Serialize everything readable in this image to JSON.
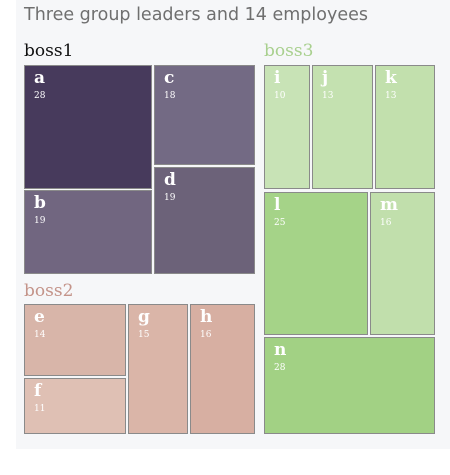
{
  "chart_data": {
    "type": "treemap",
    "title": "Three group leaders and 14 employees",
    "groups": [
      {
        "name": "boss1",
        "label_color": "#111111",
        "color": "#6e6480",
        "children": [
          {
            "name": "a",
            "value": 28,
            "color": "#473a5c"
          },
          {
            "name": "b",
            "value": 19,
            "color": "#716680"
          },
          {
            "name": "c",
            "value": 18,
            "color": "#736a84"
          },
          {
            "name": "d",
            "value": 19,
            "color": "#6c6279"
          }
        ]
      },
      {
        "name": "boss2",
        "label_color": "#c4948a",
        "color": "#d9b2a6",
        "children": [
          {
            "name": "e",
            "value": 14,
            "color": "#d8b5a9"
          },
          {
            "name": "f",
            "value": 11,
            "color": "#dfc0b4"
          },
          {
            "name": "g",
            "value": 15,
            "color": "#dab5a8"
          },
          {
            "name": "h",
            "value": 16,
            "color": "#d7afa2"
          }
        ]
      },
      {
        "name": "boss3",
        "label_color": "#a9d08f",
        "color": "#c2e0ae",
        "children": [
          {
            "name": "i",
            "value": 10,
            "color": "#c8e3b6"
          },
          {
            "name": "j",
            "value": 13,
            "color": "#c4e1b0"
          },
          {
            "name": "k",
            "value": 13,
            "color": "#c2e0ad"
          },
          {
            "name": "l",
            "value": 25,
            "color": "#a5d388"
          },
          {
            "name": "m",
            "value": 16,
            "color": "#c1dfac"
          },
          {
            "name": "n",
            "value": 28,
            "color": "#a2d184"
          }
        ]
      }
    ]
  }
}
